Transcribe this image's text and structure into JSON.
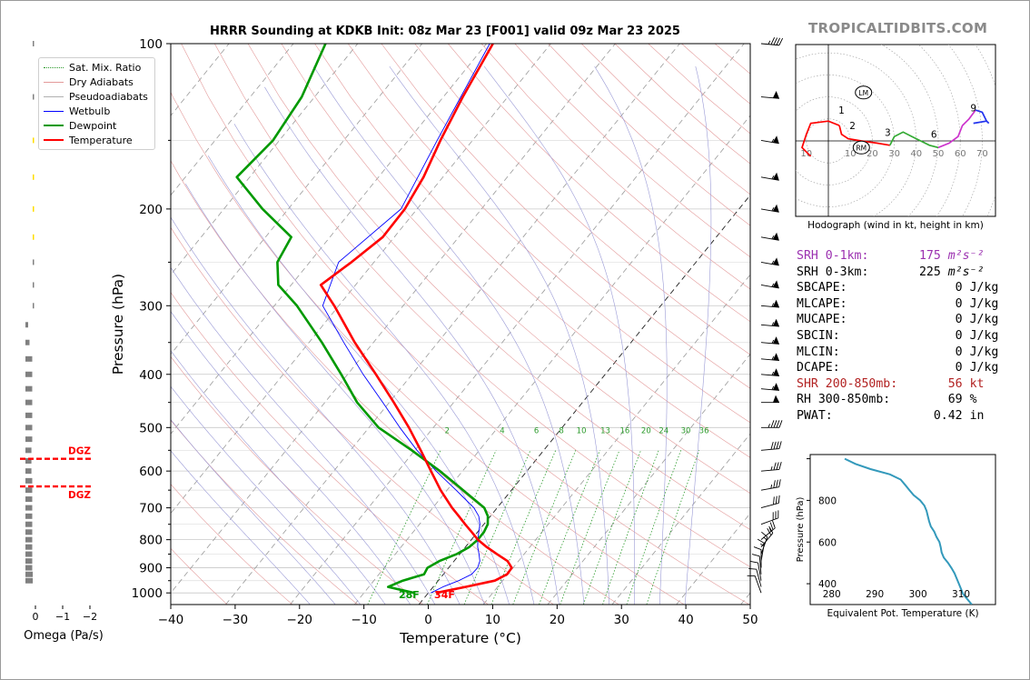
{
  "brand": "TROPICALTIDBITS.COM",
  "title": "HRRR Sounding at KDKB Init: 08z Mar 23 [F001] valid 09z Mar 23 2025",
  "colors": {
    "temperature": "#ff0000",
    "dewpoint": "#009900",
    "wetbulb": "#0000ff",
    "dry_adiabat": "#e39a9a",
    "moist_adiabat": "#9a9ad6",
    "mixing_ratio": "#2a9a2a",
    "isotherm": "#999999",
    "omega": "#808080",
    "dgz": "#ff0000",
    "srh01": "#9b30b0",
    "shear": "#b22222",
    "theta_e": "#3399bb"
  },
  "chart_data": [
    {
      "type": "line",
      "name": "skew-t",
      "title": "HRRR Sounding at KDKB Init: 08z Mar 23 [F001] valid 09z Mar 23 2025",
      "xlabel": "Temperature (°C)",
      "ylabel": "Pressure (hPa)",
      "xlim": [
        -40,
        50
      ],
      "ylim": [
        1050,
        100
      ],
      "y_scale": "log",
      "x_ticks": [
        -40,
        -30,
        -20,
        -10,
        0,
        10,
        20,
        30,
        40,
        50
      ],
      "x_tick_labels": [
        "−40",
        "−30",
        "−20",
        "−10",
        "0",
        "10",
        "20",
        "30",
        "40",
        "50"
      ],
      "y_ticks": [
        1000,
        900,
        800,
        700,
        600,
        500,
        400,
        300,
        200,
        100
      ],
      "y_tick_labels": [
        "1000",
        "900",
        "800",
        "700",
        "600",
        "500",
        "400",
        "300",
        "200",
        "100"
      ],
      "minor_pressure_lines": [
        950,
        850,
        750,
        650,
        550,
        450,
        350,
        250,
        150
      ],
      "mixing_ratio_labels": [
        "2",
        "4",
        "6",
        "8",
        "10",
        "13",
        "16",
        "20",
        "24",
        "30",
        "36"
      ],
      "legend": {
        "placement": "top-left",
        "entries": [
          "Sat. Mix. Ratio",
          "Dry Adiabats",
          "Pseudoadiabats",
          "Wetbulb",
          "Dewpoint",
          "Temperature"
        ]
      },
      "surface_labels": {
        "dewpoint": "28F",
        "temperature": "34F"
      },
      "series": [
        {
          "name": "Temperature",
          "pressure": [
            1000,
            975,
            950,
            925,
            900,
            875,
            850,
            825,
            800,
            775,
            750,
            725,
            700,
            650,
            600,
            550,
            500,
            450,
            400,
            350,
            300,
            275,
            250,
            225,
            200,
            175,
            150,
            125,
            100
          ],
          "temp": [
            1.2,
            5.0,
            8.8,
            9.9,
            9.8,
            8.3,
            5.8,
            3.3,
            1.0,
            -0.9,
            -2.9,
            -4.9,
            -7.0,
            -11.0,
            -14.9,
            -19.1,
            -23.8,
            -29.3,
            -35.6,
            -42.9,
            -50.7,
            -55.4,
            -53.5,
            -51.8,
            -51.9,
            -53.0,
            -55.0,
            -57.0,
            -59.0
          ]
        },
        {
          "name": "Dewpoint",
          "pressure": [
            1000,
            975,
            950,
            925,
            900,
            875,
            850,
            825,
            800,
            775,
            750,
            725,
            700,
            650,
            600,
            550,
            500,
            450,
            400,
            350,
            300,
            275,
            250,
            225,
            200,
            175,
            150,
            125,
            100
          ],
          "temp": [
            -2.2,
            -7.0,
            -5.5,
            -3.0,
            -3.3,
            -2.3,
            -0.5,
            0.6,
            1.0,
            1.0,
            0.6,
            -0.4,
            -2.0,
            -7.5,
            -13.5,
            -20.5,
            -28.5,
            -35.0,
            -41.0,
            -48.0,
            -56.5,
            -62.0,
            -65.0,
            -66.0,
            -74.0,
            -82.0,
            -81.0,
            -82.0,
            -85.0
          ]
        },
        {
          "name": "Wetbulb",
          "pressure": [
            1000,
            975,
            950,
            925,
            900,
            875,
            850,
            825,
            800,
            775,
            750,
            725,
            700,
            650,
            600,
            550,
            500,
            450,
            400,
            350,
            300,
            250,
            200,
            150,
            100
          ],
          "temp": [
            0.4,
            1.5,
            3.2,
            4.4,
            4.5,
            4.0,
            3.0,
            1.9,
            1.0,
            0.2,
            -0.6,
            -1.8,
            -3.6,
            -8.6,
            -14.1,
            -19.7,
            -25.2,
            -31.0,
            -37.6,
            -44.6,
            -52.5,
            -55.5,
            -52.5,
            -55.5,
            -59.5
          ]
        }
      ]
    },
    {
      "type": "bar",
      "name": "omega",
      "xlabel": "Omega (Pa/s)",
      "x_ticks": [
        0,
        -1,
        -2
      ],
      "x_tick_labels": [
        "0",
        "−1",
        "−2"
      ],
      "dgz_label": "DGZ",
      "dgz_pressure": [
        570,
        640
      ],
      "pressure": [
        950,
        925,
        900,
        875,
        850,
        825,
        800,
        775,
        750,
        725,
        700,
        675,
        650,
        625,
        600,
        575,
        550,
        525,
        500,
        475,
        450,
        425,
        400,
        375,
        350,
        325,
        300,
        275,
        250,
        225,
        200,
        175,
        150,
        125,
        100
      ],
      "values": [
        -0.27,
        -0.27,
        -0.25,
        -0.25,
        -0.25,
        -0.25,
        -0.25,
        -0.25,
        -0.25,
        -0.25,
        -0.25,
        -0.25,
        -0.25,
        -0.25,
        -0.22,
        -0.22,
        -0.22,
        -0.25,
        -0.25,
        -0.25,
        -0.25,
        -0.25,
        -0.25,
        -0.25,
        -0.15,
        -0.1,
        -0.04,
        -0.02,
        -0.01,
        -0.01,
        -0.01,
        -0.03,
        -0.03,
        -0.04,
        -0.04
      ],
      "highlighted": [
        false,
        false,
        false,
        false,
        false,
        false,
        false,
        false,
        false,
        false,
        false,
        false,
        false,
        false,
        false,
        false,
        false,
        false,
        false,
        false,
        false,
        false,
        false,
        false,
        false,
        false,
        false,
        false,
        false,
        true,
        true,
        true,
        true,
        false,
        false
      ]
    },
    {
      "type": "line",
      "name": "hodograph",
      "xlabel": "Hodograph (wind in kt, height in km)",
      "ring_labels": [
        "10",
        "10",
        "20",
        "30",
        "40",
        "50",
        "60",
        "70"
      ],
      "storm_motion_labels": [
        "LM",
        "RM"
      ],
      "height_labels": [
        "1",
        "2",
        "3",
        "6",
        "9"
      ]
    },
    {
      "type": "line",
      "name": "theta-e",
      "xlabel": "Equivalent Pot. Temperature (K)",
      "ylabel": "Pressure (hPa)",
      "x_ticks": [
        280,
        290,
        300,
        310
      ],
      "y_ticks": [
        400,
        600,
        800
      ],
      "xlim": [
        275,
        318
      ],
      "ylim": [
        1020,
        300
      ],
      "pressure": [
        1000,
        975,
        950,
        925,
        900,
        875,
        850,
        825,
        800,
        775,
        750,
        725,
        700,
        675,
        650,
        625,
        600,
        575,
        550,
        525,
        500,
        475,
        450,
        425,
        400,
        375,
        350,
        325,
        300
      ],
      "values": [
        283.0,
        285.5,
        289.0,
        293.5,
        296.0,
        297.0,
        298.0,
        299.0,
        300.5,
        301.5,
        302.0,
        302.3,
        302.6,
        303.0,
        303.8,
        304.3,
        305.0,
        305.3,
        305.5,
        306.0,
        307.0,
        307.8,
        308.5,
        309.0,
        309.5,
        310.0,
        310.5,
        311.5,
        312.5
      ]
    }
  ],
  "stats": [
    {
      "label": "SRH 0-1km:",
      "value": "175",
      "unit": "m²s⁻²",
      "highlight": "srh01"
    },
    {
      "label": "SRH 0-3km:",
      "value": "225",
      "unit": "m²s⁻²",
      "highlight": ""
    },
    {
      "label": "SBCAPE:",
      "value": "0",
      "unit": "J/kg",
      "highlight": ""
    },
    {
      "label": "MLCAPE:",
      "value": "0",
      "unit": "J/kg",
      "highlight": ""
    },
    {
      "label": "MUCAPE:",
      "value": "0",
      "unit": "J/kg",
      "highlight": ""
    },
    {
      "label": "SBCIN:",
      "value": "0",
      "unit": "J/kg",
      "highlight": ""
    },
    {
      "label": "MLCIN:",
      "value": "0",
      "unit": "J/kg",
      "highlight": ""
    },
    {
      "label": "DCAPE:",
      "value": "0",
      "unit": "J/kg",
      "highlight": ""
    },
    {
      "label": "SHR 200-850mb:",
      "value": "56",
      "unit": "kt",
      "highlight": "shear"
    },
    {
      "label": "RH 300-850mb:",
      "value": "69",
      "unit": "%",
      "highlight": ""
    },
    {
      "label": "PWAT:",
      "value": "0.42",
      "unit": "in",
      "highlight": ""
    }
  ],
  "wind_barbs": {
    "pressure": [
      100,
      125,
      150,
      175,
      200,
      225,
      250,
      275,
      300,
      325,
      350,
      375,
      400,
      425,
      450,
      500,
      550,
      600,
      650,
      700,
      750,
      800,
      825,
      850,
      875,
      900,
      925,
      950,
      975,
      1000
    ],
    "speed_kt": [
      45,
      50,
      55,
      55,
      55,
      55,
      55,
      55,
      55,
      55,
      55,
      55,
      55,
      55,
      50,
      45,
      40,
      35,
      35,
      30,
      30,
      25,
      20,
      15,
      15,
      10,
      10,
      10,
      10,
      10
    ],
    "direction_deg": [
      275,
      275,
      280,
      280,
      280,
      280,
      280,
      280,
      275,
      275,
      275,
      275,
      275,
      275,
      270,
      270,
      265,
      265,
      260,
      255,
      250,
      230,
      220,
      200,
      190,
      180,
      175,
      170,
      165,
      160
    ]
  }
}
